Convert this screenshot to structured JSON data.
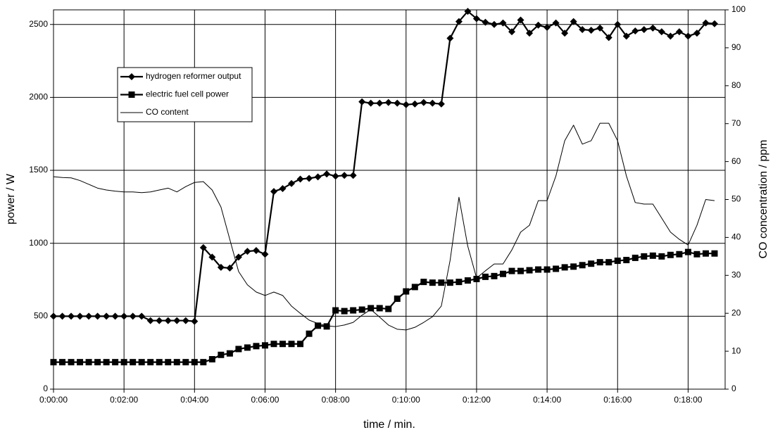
{
  "chart_data": {
    "type": "line",
    "x_label": "time / min.",
    "y_label": "power / W",
    "y2_label": "CO concentration / ppm",
    "x": [
      0,
      0.25,
      0.5,
      0.75,
      1,
      1.25,
      1.5,
      1.75,
      2,
      2.25,
      2.5,
      2.75,
      3,
      3.25,
      3.5,
      3.75,
      4,
      4.25,
      4.5,
      4.75,
      5,
      5.25,
      5.5,
      5.75,
      6,
      6.25,
      6.5,
      6.75,
      7,
      7.25,
      7.5,
      7.75,
      8,
      8.25,
      8.5,
      8.75,
      9,
      9.25,
      9.5,
      9.75,
      10,
      10.25,
      10.5,
      10.75,
      11,
      11.25,
      11.5,
      11.75,
      12,
      12.25,
      12.5,
      12.75,
      13,
      13.25,
      13.5,
      13.75,
      14,
      14.25,
      14.5,
      14.75,
      15,
      15.25,
      15.5,
      15.75,
      16,
      16.25,
      16.5,
      16.75,
      17,
      17.25,
      17.5,
      17.75,
      18,
      18.25,
      18.5,
      18.75
    ],
    "series": [
      {
        "name": "hydrogen reformer output",
        "color": "#000000",
        "marker": "diamond",
        "axis": "y",
        "values": [
          500,
          500,
          500,
          500,
          500,
          500,
          500,
          500,
          500,
          500,
          500,
          470,
          470,
          470,
          470,
          470,
          465,
          970,
          905,
          835,
          830,
          905,
          945,
          950,
          925,
          1355,
          1375,
          1410,
          1440,
          1445,
          1455,
          1475,
          1460,
          1465,
          1465,
          1970,
          1960,
          1960,
          1965,
          1960,
          1950,
          1955,
          1965,
          1960,
          1955,
          2405,
          2520,
          2590,
          2540,
          2515,
          2500,
          2510,
          2450,
          2530,
          2440,
          2495,
          2480,
          2510,
          2440,
          2520,
          2465,
          2460,
          2475,
          2410,
          2500,
          2420,
          2455,
          2465,
          2475,
          2450,
          2420,
          2450,
          2420,
          2440,
          2510,
          2505
        ]
      },
      {
        "name": "electric fuel cell power",
        "color": "#000000",
        "marker": "square",
        "axis": "y",
        "values": [
          185,
          185,
          185,
          185,
          185,
          185,
          185,
          185,
          185,
          185,
          185,
          185,
          185,
          185,
          185,
          185,
          185,
          185,
          205,
          235,
          245,
          275,
          285,
          295,
          300,
          310,
          310,
          310,
          310,
          380,
          435,
          430,
          540,
          535,
          540,
          545,
          555,
          555,
          550,
          620,
          670,
          700,
          735,
          730,
          730,
          730,
          735,
          745,
          755,
          770,
          775,
          790,
          810,
          810,
          815,
          820,
          820,
          825,
          835,
          840,
          850,
          860,
          870,
          870,
          880,
          885,
          900,
          910,
          915,
          910,
          920,
          925,
          940,
          925,
          930,
          930
        ]
      },
      {
        "name": "CO content",
        "color": "#000000",
        "marker": "none",
        "axis": "y2",
        "values": [
          56,
          55.8,
          55.7,
          55,
          54,
          53,
          52.5,
          52.2,
          52,
          52,
          51.8,
          52,
          52.5,
          53,
          52,
          53.4,
          54.5,
          54.7,
          52.5,
          48,
          39.5,
          31,
          27.5,
          25.6,
          24.7,
          25.6,
          24.7,
          21.9,
          20,
          18.2,
          17.3,
          16.7,
          16.5,
          16.9,
          17.6,
          19.5,
          21,
          19,
          16.9,
          15.8,
          15.6,
          16.3,
          17.6,
          19.1,
          21.9,
          34,
          50.6,
          37.7,
          29.3,
          31.2,
          33,
          33,
          36.7,
          41.4,
          43.2,
          49.7,
          49.7,
          56.2,
          65.5,
          69.6,
          64.6,
          65.5,
          70.1,
          70.1,
          65.5,
          56.2,
          49.2,
          48.8,
          48.8,
          45.1,
          41.4,
          39.5,
          38,
          43.2,
          50,
          49.7
        ]
      }
    ],
    "xlim": [
      0,
      19.05
    ],
    "xticks": [
      {
        "value": 0,
        "label": "0:00:00"
      },
      {
        "value": 2,
        "label": "0:02:00"
      },
      {
        "value": 4,
        "label": "0:04:00"
      },
      {
        "value": 6,
        "label": "0:06:00"
      },
      {
        "value": 8,
        "label": "0:08:00"
      },
      {
        "value": 10,
        "label": "0:10:00"
      },
      {
        "value": 12,
        "label": "0:12:00"
      },
      {
        "value": 14,
        "label": "0:14:00"
      },
      {
        "value": 16,
        "label": "0:16:00"
      },
      {
        "value": 18,
        "label": "0:18:00"
      }
    ],
    "ylim": [
      0,
      2600
    ],
    "yticks": [
      0,
      500,
      1000,
      1500,
      2000,
      2500
    ],
    "y2lim": [
      0,
      100
    ],
    "y2ticks": [
      0,
      10,
      20,
      30,
      40,
      50,
      60,
      70,
      80,
      90,
      100
    ],
    "grid": true,
    "legend": "upper left"
  }
}
